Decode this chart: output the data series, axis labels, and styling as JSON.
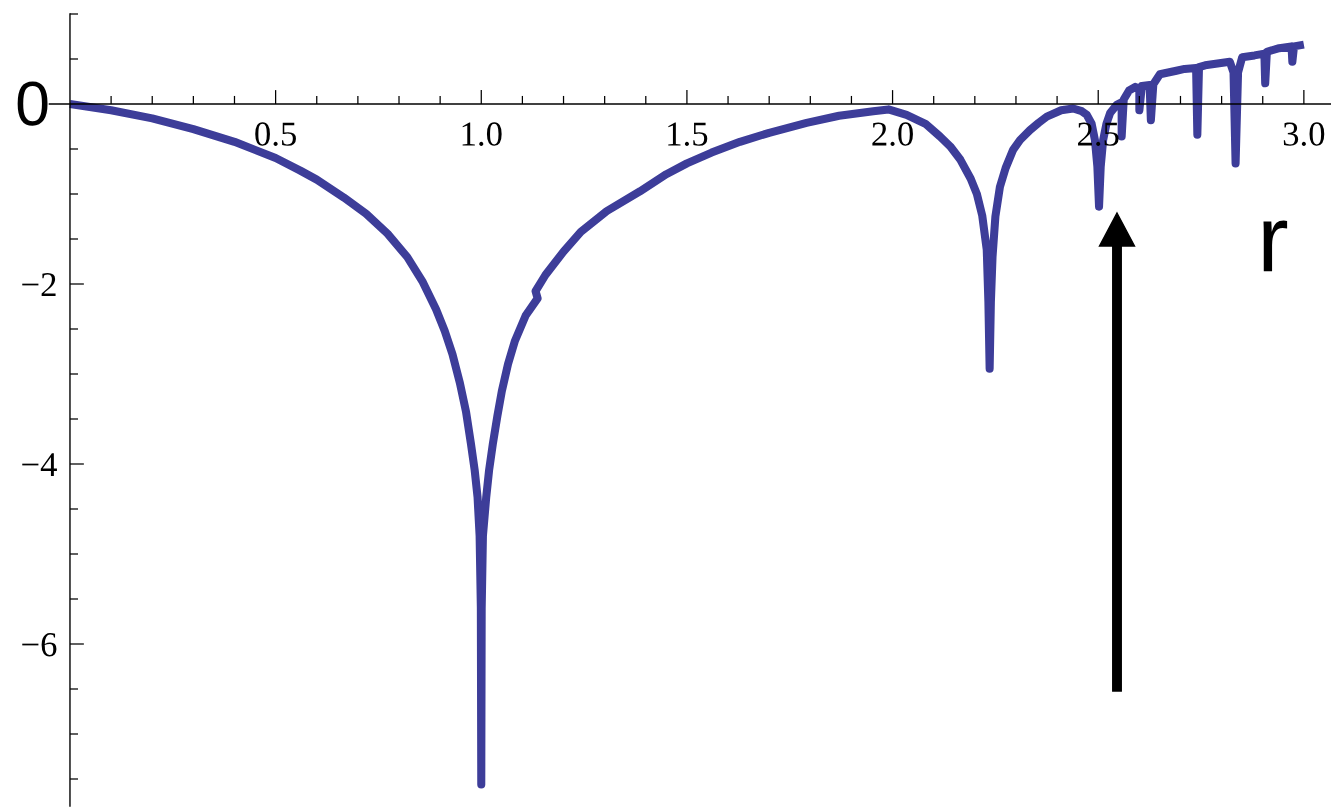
{
  "chart_data": {
    "type": "line",
    "xlabel": "r",
    "annotations": [
      "0"
    ],
    "xlim": [
      -0.05,
      3.065
    ],
    "ylim": [
      -7.8,
      1.0
    ],
    "xticks": [
      {
        "value": 0.1,
        "label": null
      },
      {
        "value": 0.2,
        "label": null
      },
      {
        "value": 0.3,
        "label": null
      },
      {
        "value": 0.4,
        "label": null
      },
      0.5,
      {
        "value": 0.6,
        "label": null
      },
      {
        "value": 0.7,
        "label": null
      },
      {
        "value": 0.8,
        "label": null
      },
      {
        "value": 0.9,
        "label": null
      },
      {
        "value": 1,
        "label": "1.0"
      },
      {
        "value": 1.1,
        "label": null
      },
      {
        "value": 1.2,
        "label": null
      },
      {
        "value": 1.3,
        "label": null
      },
      {
        "value": 1.4,
        "label": null
      },
      1.5,
      {
        "value": 1.6,
        "label": null
      },
      {
        "value": 1.7,
        "label": null
      },
      {
        "value": 1.8,
        "label": null
      },
      {
        "value": 1.9,
        "label": null
      },
      {
        "value": 2,
        "label": "2.0"
      },
      {
        "value": 2.1,
        "label": null
      },
      {
        "value": 2.2,
        "label": null
      },
      {
        "value": 2.3,
        "label": null
      },
      {
        "value": 2.4,
        "label": null
      },
      2.5,
      {
        "value": 2.6,
        "label": null
      },
      {
        "value": 2.7,
        "label": null
      },
      {
        "value": 2.8,
        "label": null
      },
      {
        "value": 2.9,
        "label": null
      },
      {
        "value": 3,
        "label": "3.0"
      }
    ],
    "yticks": [
      {
        "value": 1,
        "label": null
      },
      {
        "value": 0.5,
        "label": null
      },
      {
        "value": -0.5,
        "label": null
      },
      {
        "value": -1,
        "label": null
      },
      {
        "value": -1.5,
        "label": null
      },
      {
        "value": -2,
        "label": "−2"
      },
      {
        "value": -2.5,
        "label": null
      },
      {
        "value": -3,
        "label": null
      },
      {
        "value": -3.5,
        "label": null
      },
      {
        "value": -4,
        "label": "−4"
      },
      {
        "value": -4.5,
        "label": null
      },
      {
        "value": -5,
        "label": null
      },
      {
        "value": -5.5,
        "label": null
      },
      {
        "value": -6,
        "label": "−6"
      },
      {
        "value": -6.5,
        "label": null
      },
      {
        "value": -7,
        "label": null
      },
      {
        "value": -7.5,
        "label": null
      }
    ],
    "line_style": "solid",
    "series": [
      {
        "color": "#3d3d99",
        "x": [
          0,
          0.1,
          0.2,
          0.3,
          0.4,
          0.5,
          0.56,
          0.6,
          0.666,
          0.72,
          0.772,
          0.82,
          0.858,
          0.89,
          0.911,
          0.93,
          0.948,
          0.963,
          0.975,
          0.984,
          0.991,
          0.996,
          0.999,
          1.0,
          1.001,
          1.004,
          1.012,
          1.019,
          1.028,
          1.039,
          1.05,
          1.065,
          1.082,
          1.108,
          1.137,
          1.132,
          1.156,
          1.2,
          1.242,
          1.305,
          1.386,
          1.45,
          1.5,
          1.56,
          1.629,
          1.7,
          1.791,
          1.87,
          1.953,
          1.99,
          2.034,
          2.08,
          2.115,
          2.14,
          2.165,
          2.19,
          2.205,
          2.218,
          2.229,
          2.233,
          2.236,
          2.239,
          2.243,
          2.25,
          2.261,
          2.275,
          2.293,
          2.31,
          2.334,
          2.355,
          2.375,
          2.41,
          2.439,
          2.46,
          2.472,
          2.484,
          2.492,
          2.498,
          2.502,
          2.506,
          2.512,
          2.52,
          2.529,
          2.545,
          2.557,
          2.557,
          2.562,
          2.575,
          2.59,
          2.6,
          2.6,
          2.606,
          2.625,
          2.628,
          2.634,
          2.65,
          2.67,
          2.69,
          2.71,
          2.738,
          2.741,
          2.745,
          2.76,
          2.79,
          2.82,
          2.829,
          2.834,
          2.84,
          2.85,
          2.88,
          2.904,
          2.906,
          2.91,
          2.94,
          2.97,
          2.972,
          2.976,
          3.0
        ],
        "values": [
          0,
          -0.07,
          -0.16,
          -0.28,
          -0.42,
          -0.6,
          -0.74,
          -0.84,
          -1.04,
          -1.22,
          -1.44,
          -1.7,
          -1.98,
          -2.28,
          -2.52,
          -2.78,
          -3.1,
          -3.42,
          -3.78,
          -4.07,
          -4.37,
          -4.8,
          -5.6,
          -7.56,
          -5.6,
          -4.8,
          -4.37,
          -4.07,
          -3.78,
          -3.47,
          -3.19,
          -2.89,
          -2.63,
          -2.35,
          -2.16,
          -2.08,
          -1.9,
          -1.64,
          -1.42,
          -1.19,
          -0.97,
          -0.78,
          -0.66,
          -0.54,
          -0.42,
          -0.32,
          -0.21,
          -0.13,
          -0.08,
          -0.06,
          -0.12,
          -0.22,
          -0.36,
          -0.47,
          -0.62,
          -0.83,
          -1.0,
          -1.24,
          -1.62,
          -2.2,
          -2.94,
          -2.2,
          -1.7,
          -1.25,
          -0.92,
          -0.71,
          -0.51,
          -0.4,
          -0.29,
          -0.21,
          -0.14,
          -0.07,
          -0.05,
          -0.08,
          -0.12,
          -0.22,
          -0.4,
          -0.7,
          -1.14,
          -0.7,
          -0.4,
          -0.22,
          -0.1,
          -0.01,
          0.02,
          -0.36,
          0.05,
          0.15,
          0.19,
          0.17,
          -0.07,
          0.2,
          0.21,
          -0.18,
          0.22,
          0.33,
          0.35,
          0.37,
          0.39,
          0.4,
          -0.34,
          0.41,
          0.43,
          0.45,
          0.47,
          0.35,
          -0.66,
          0.35,
          0.52,
          0.54,
          0.56,
          0.23,
          0.58,
          0.62,
          0.64,
          0.47,
          0.64,
          0.66
        ]
      }
    ]
  }
}
